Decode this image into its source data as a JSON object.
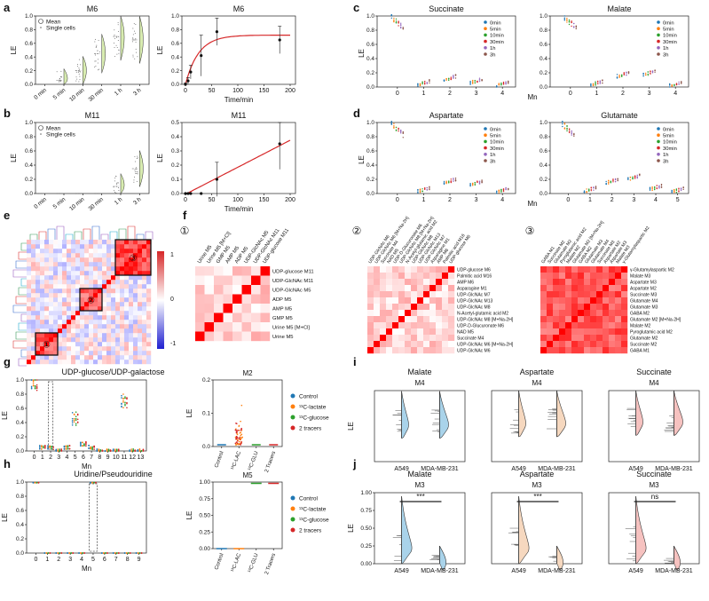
{
  "panel_letters": [
    "a",
    "b",
    "c",
    "d",
    "e",
    "f",
    "g",
    "h",
    "i",
    "j"
  ],
  "circled": [
    "①",
    "②",
    "③"
  ],
  "colorbar": {
    "ticks": [
      "1",
      "0",
      "-1"
    ]
  },
  "common": {
    "le": "LE",
    "mn": "Mn",
    "time": "Time/min",
    "mean": "Mean",
    "single_cells": "Single cells",
    "times_short": [
      "0min",
      "5min",
      "10min",
      "30min",
      "1h",
      "3h"
    ],
    "times_axis": [
      "0 min",
      "5 min",
      "10 min",
      "30 min",
      "1 h",
      "3 h"
    ],
    "tracers": [
      "Control",
      "¹³C-lactate",
      "¹³C-glucose",
      "2 tracers"
    ],
    "tracer_ticks": [
      "Control",
      "¹³C-LAC",
      "¹³C-GLU",
      "2 Tracers"
    ],
    "cells": [
      "A549",
      "MDA-MB-231"
    ]
  },
  "colors": {
    "green_fill": "#d8ecb0",
    "red_line": "#d62728",
    "times": [
      "#1f77b4",
      "#ff7f0e",
      "#2ca02c",
      "#d62728",
      "#9467bd",
      "#8c564b"
    ],
    "tracers": [
      "#1f77b4",
      "#ff7f0e",
      "#2ca02c",
      "#d62728"
    ],
    "violin_i": [
      "#a9d3ea",
      "#f6d8bf",
      "#f6c2c0"
    ],
    "violin_j": [
      "#a9d3ea",
      "#f6d8bf",
      "#f6c2c0"
    ]
  },
  "chart_data": [
    {
      "id": "a-left",
      "type": "violin",
      "title": "M6",
      "ylabel": "LE",
      "categories": [
        "0 min",
        "5 min",
        "10 min",
        "30 min",
        "1 h",
        "3 h"
      ],
      "ylim": [
        0,
        1
      ],
      "yticks": [
        "0.0",
        "0.2",
        "0.4",
        "0.6",
        "0.8",
        "1.0"
      ],
      "legend": [
        "Mean",
        "Single cells"
      ],
      "means": [
        0.0,
        0.06,
        0.2,
        0.45,
        0.7,
        0.65
      ]
    },
    {
      "id": "a-right",
      "type": "line",
      "title": "M6",
      "xlabel": "Time/min",
      "ylabel": "LE",
      "xlim": [
        0,
        200
      ],
      "ylim": [
        0,
        1
      ],
      "xticks": [
        "0",
        "50",
        "100",
        "150",
        "200"
      ],
      "yticks": [
        "0.0",
        "0.2",
        "0.4",
        "0.6",
        "0.8",
        "1.0"
      ],
      "x": [
        0,
        5,
        10,
        30,
        60,
        180
      ],
      "y": [
        0.0,
        0.05,
        0.18,
        0.42,
        0.77,
        0.65
      ],
      "err": [
        0.02,
        0.05,
        0.1,
        0.3,
        0.2,
        0.2
      ],
      "fit": "saturation"
    },
    {
      "id": "b-left",
      "type": "violin",
      "title": "M11",
      "ylabel": "LE",
      "categories": [
        "0 min",
        "5 min",
        "10 min",
        "30 min",
        "1 h",
        "3 h"
      ],
      "ylim": [
        0,
        1
      ],
      "yticks": [
        "0.0",
        "0.2",
        "0.4",
        "0.6",
        "0.8",
        "1.0"
      ],
      "legend": [
        "Mean",
        "Single cells"
      ],
      "means": [
        0.0,
        0.0,
        0.0,
        0.0,
        0.1,
        0.35
      ]
    },
    {
      "id": "b-right",
      "type": "line",
      "title": "M11",
      "xlabel": "Time/min",
      "ylabel": "LE",
      "xlim": [
        0,
        200
      ],
      "ylim": [
        0,
        0.5
      ],
      "xticks": [
        "0",
        "50",
        "100",
        "150",
        "200"
      ],
      "yticks": [
        "0.0",
        "0.1",
        "0.2",
        "0.3",
        "0.4",
        "0.5"
      ],
      "x": [
        0,
        5,
        10,
        30,
        60,
        180
      ],
      "y": [
        0.0,
        0.0,
        0.0,
        0.0,
        0.1,
        0.35
      ],
      "err": [
        0.0,
        0.0,
        0.0,
        0.0,
        0.12,
        0.18
      ],
      "fit": "linear"
    },
    {
      "id": "c-succinate",
      "type": "scatter",
      "title": "Succinate",
      "xlabel": "Mn",
      "ylabel": "LE",
      "xticks": [
        "0",
        "1",
        "2",
        "3",
        "4"
      ],
      "yticks": [
        "0.0",
        "0.2",
        "0.4",
        "0.6",
        "0.8",
        "1.0"
      ],
      "series": [
        "0min",
        "5min",
        "10min",
        "30min",
        "1h",
        "3h"
      ],
      "values": [
        0.98,
        0.03,
        0.1,
        0.06,
        0.02
      ]
    },
    {
      "id": "c-malate",
      "type": "scatter",
      "title": "Malate",
      "xlabel": "Mn",
      "ylabel": "LE",
      "xticks": [
        "0",
        "1",
        "2",
        "3",
        "4"
      ],
      "yticks": [
        "0.0",
        "0.2",
        "0.4",
        "0.6",
        "0.8",
        "1.0"
      ],
      "series": [
        "0min",
        "5min",
        "10min",
        "30min",
        "1h",
        "3h"
      ],
      "values": [
        0.98,
        0.03,
        0.15,
        0.17,
        0.02
      ]
    },
    {
      "id": "d-aspartate",
      "type": "scatter",
      "title": "Aspartate",
      "xlabel": "Mn",
      "ylabel": "LE",
      "xticks": [
        "0",
        "1",
        "2",
        "3",
        "4"
      ],
      "yticks": [
        "0.0",
        "0.2",
        "0.4",
        "0.6",
        "0.8",
        "1.0"
      ],
      "series": [
        "0min",
        "5min",
        "10min",
        "30min",
        "1h",
        "3h"
      ],
      "values": [
        0.98,
        0.03,
        0.15,
        0.12,
        0.02
      ]
    },
    {
      "id": "d-glutamate",
      "type": "scatter",
      "title": "Glutamate",
      "xlabel": "Mn",
      "ylabel": "LE",
      "xticks": [
        "0",
        "1",
        "2",
        "3",
        "4",
        "5"
      ],
      "yticks": [
        "0.0",
        "0.2",
        "0.4",
        "0.6",
        "0.8",
        "1.0"
      ],
      "series": [
        "0min",
        "5min",
        "10min",
        "30min",
        "1h",
        "3h"
      ],
      "values": [
        0.98,
        0.03,
        0.15,
        0.2,
        0.06,
        0.02
      ]
    },
    {
      "id": "e",
      "type": "heatmap",
      "colorbar": [
        "1",
        "0",
        "-1"
      ],
      "boxes": [
        "①",
        "②",
        "③"
      ]
    },
    {
      "id": "f1",
      "type": "heatmap",
      "labels": [
        "UDP-glucose M11",
        "UDP-GlcNAc M11",
        "UDP-GlcNAc M5",
        "ADP M5",
        "AMP M5",
        "GMP M5",
        "Urine M5 [M+Cl]",
        "Urine M5"
      ]
    },
    {
      "id": "f2",
      "type": "heatmap",
      "labels": [
        "UDP-glucose M6",
        "Palmitic acid M16",
        "AMP M6",
        "Asparagine M1",
        "UDP-GlcNAc M7",
        "UDP-GlcNAc M13",
        "UDP-GlcNAc M8",
        "N-Acetyl-glutamic acid M2",
        "UDP-GlcNAc M8 [M+Na-2H]",
        "UDP-D-Glucuronate M6",
        "NAD M5",
        "Succinate M4",
        "UDP-GlcNAc M6 [M+Na-2H]",
        "UDP-GlcNAc M6"
      ]
    },
    {
      "id": "f3",
      "type": "heatmap",
      "labels": [
        "γ-Glutamylaspartic M2",
        "Malate M3",
        "Aspartate M3",
        "Aspartate M2",
        "Succinate M3",
        "Glutamate M4",
        "Glutamate M3",
        "GABA M2",
        "Glutamate M2 [M+Na-2H]",
        "Malate M2",
        "Pyroglutamic acid M2",
        "Glutamate M2",
        "Succinate M2",
        "GABA M1"
      ]
    },
    {
      "id": "g-left",
      "type": "scatter",
      "title": "UDP-glucose/UDP-galactose",
      "xlabel": "Mn",
      "ylabel": "LE",
      "xticks": [
        "0",
        "1",
        "2",
        "3",
        "4",
        "5",
        "6",
        "7",
        "8",
        "9",
        "10",
        "11",
        "12",
        "13"
      ],
      "yticks": [
        "0.0",
        "0.2",
        "0.4",
        "0.6",
        "0.8",
        "1.0"
      ]
    },
    {
      "id": "g-right",
      "type": "scatter",
      "title": "M2",
      "ylabel": "LE",
      "categories": [
        "Control",
        "¹³C-LAC",
        "¹³C-GLU",
        "2 Tracers"
      ],
      "yticks": [
        "0.0",
        "0.1",
        "0.2"
      ],
      "legend": [
        "Control",
        "¹³C-lactate",
        "¹³C-glucose",
        "2 tracers"
      ]
    },
    {
      "id": "h-left",
      "type": "scatter",
      "title": "Uridine/Pseudouridine",
      "xlabel": "Mn",
      "ylabel": "LE",
      "xticks": [
        "0",
        "1",
        "2",
        "3",
        "4",
        "5",
        "6",
        "7",
        "8",
        "9"
      ],
      "yticks": [
        "0.0",
        "0.2",
        "0.4",
        "0.6",
        "0.8",
        "1.0"
      ],
      "values": [
        0.99,
        0,
        0,
        0,
        0,
        0.99,
        0,
        0,
        0,
        0
      ]
    },
    {
      "id": "h-right",
      "type": "scatter",
      "title": "M5",
      "ylabel": "LE",
      "categories": [
        "Control",
        "¹³C-LAC",
        "¹³C-GLU",
        "2 Tracers"
      ],
      "yticks": [
        "0.00",
        "0.25",
        "0.50",
        "0.75",
        "1.00"
      ],
      "values": [
        0.0,
        0.0,
        1.0,
        1.0
      ],
      "legend": [
        "Control",
        "¹³C-lactate",
        "¹³C-glucose",
        "2 tracers"
      ]
    },
    {
      "id": "i",
      "type": "violin",
      "titles": [
        "Malate",
        "Aspartate",
        "Succinate"
      ],
      "subtitle": "M4",
      "ylabel": "LE",
      "categories": [
        "A549",
        "MDA-MB-231"
      ]
    },
    {
      "id": "j",
      "type": "violin",
      "titles": [
        "Malate",
        "Aspartate",
        "Succinate"
      ],
      "subtitle": "M3",
      "ylabel": "LE",
      "categories": [
        "A549",
        "MDA-MB-231"
      ],
      "yticks": [
        "0.00",
        "0.25",
        "0.50",
        "0.75",
        "1.00"
      ],
      "significance": [
        "***",
        "***",
        "ns"
      ]
    }
  ]
}
